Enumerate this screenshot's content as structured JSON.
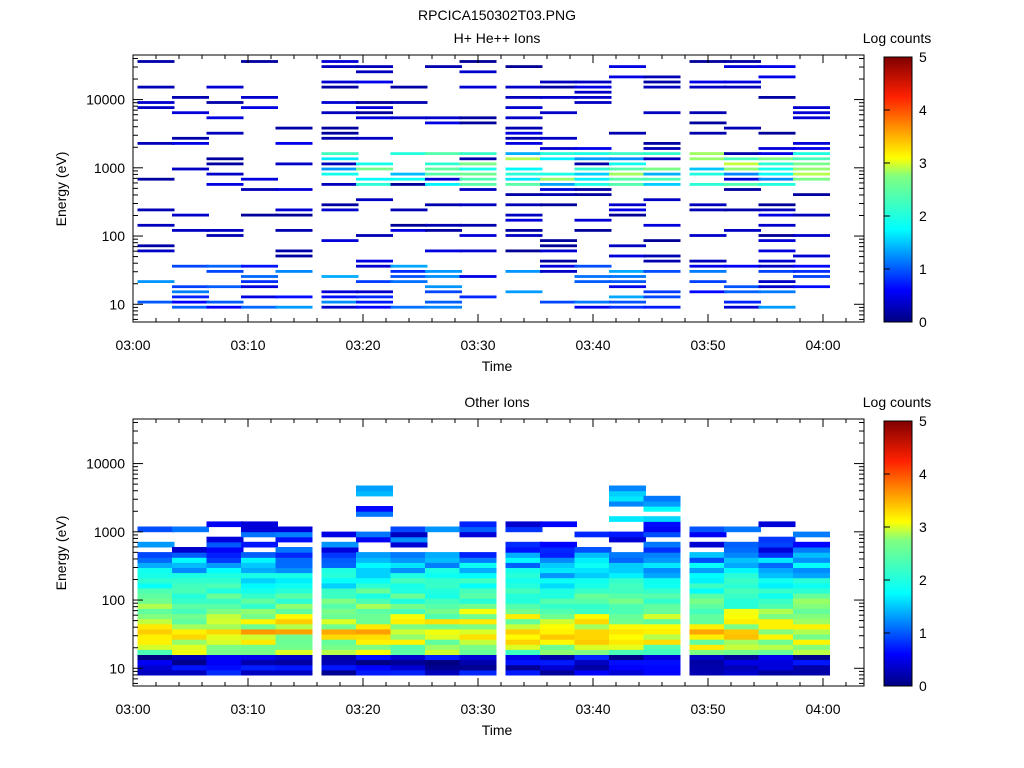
{
  "page_title": "RPCICA150302T03.PNG",
  "colorbar": {
    "label": "Log counts",
    "ticks": [
      "0",
      "1",
      "2",
      "3",
      "4",
      "5"
    ]
  },
  "chart_data": [
    {
      "type": "heatmap",
      "title": "H+ He++ Ions",
      "xlabel": "Time",
      "ylabel": "Energy (eV)",
      "x_ticks": [
        "03:00",
        "03:10",
        "03:20",
        "03:30",
        "03:40",
        "03:50",
        "04:00"
      ],
      "y_ticks": [
        "10",
        "100",
        "1000",
        "10000"
      ],
      "y_scale": "log",
      "ylim": [
        5.5,
        45000
      ],
      "xlim": [
        "03:00",
        "04:03"
      ],
      "colorbar_range": [
        0,
        5
      ],
      "time_bins": [
        "03:02",
        "03:05",
        "03:08",
        "03:11",
        "03:14",
        "03:18",
        "03:21",
        "03:24",
        "03:27",
        "03:30",
        "03:34",
        "03:37",
        "03:40",
        "03:43",
        "03:46",
        "03:50",
        "03:53",
        "03:56",
        "03:59"
      ]
    },
    {
      "type": "heatmap",
      "title": "Other Ions",
      "xlabel": "Time",
      "ylabel": "Energy (eV)",
      "x_ticks": [
        "03:00",
        "03:10",
        "03:20",
        "03:30",
        "03:40",
        "03:50",
        "04:00"
      ],
      "y_ticks": [
        "10",
        "100",
        "1000",
        "10000"
      ],
      "y_scale": "log",
      "ylim": [
        5.5,
        45000
      ],
      "xlim": [
        "03:00",
        "04:03"
      ],
      "colorbar_range": [
        0,
        5
      ],
      "time_bins": [
        "03:02",
        "03:05",
        "03:08",
        "03:11",
        "03:14",
        "03:18",
        "03:21",
        "03:24",
        "03:27",
        "03:30",
        "03:34",
        "03:37",
        "03:40",
        "03:43",
        "03:46",
        "03:50",
        "03:53",
        "03:56",
        "03:59"
      ]
    }
  ]
}
